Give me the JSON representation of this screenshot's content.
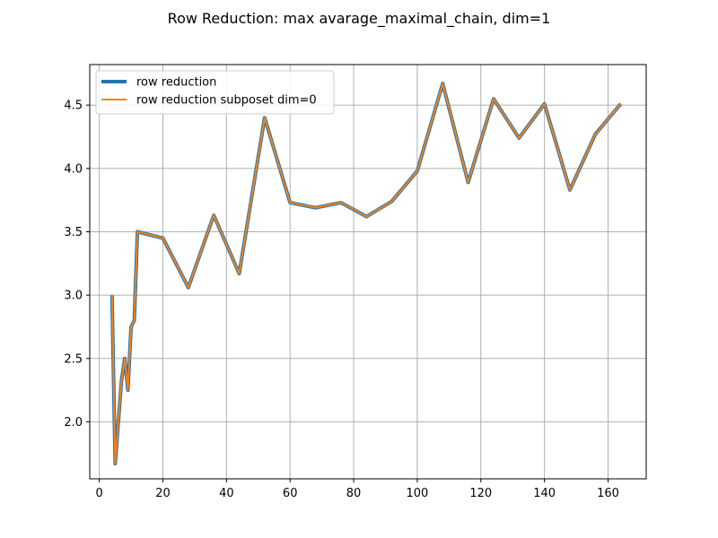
{
  "chart_data": {
    "type": "line",
    "title": "Row Reduction: max avarage_maximal_chain, dim=1",
    "xlabel": "",
    "ylabel": "",
    "xlim": [
      -3.0,
      172.0
    ],
    "ylim": [
      1.55,
      4.82
    ],
    "xticks": [
      0,
      20,
      40,
      60,
      80,
      100,
      120,
      140,
      160
    ],
    "yticks": [
      2.0,
      2.5,
      3.0,
      3.5,
      4.0,
      4.5
    ],
    "xtick_labels": [
      "0",
      "20",
      "40",
      "60",
      "80",
      "100",
      "120",
      "140",
      "160"
    ],
    "ytick_labels": [
      "2.0",
      "2.5",
      "3.0",
      "3.5",
      "4.0",
      "4.5"
    ],
    "grid": true,
    "legend_position": "top-left",
    "x": [
      4,
      5,
      7,
      8,
      9,
      10,
      11,
      12,
      20,
      28,
      36,
      44,
      52,
      60,
      68,
      76,
      84,
      92,
      100,
      108,
      116,
      124,
      132,
      140,
      148,
      156,
      164
    ],
    "series": [
      {
        "name": "row reduction",
        "color": "#1f77b4",
        "values": [
          3.0,
          1.67,
          2.33,
          2.5,
          2.25,
          2.75,
          2.8,
          3.5,
          3.45,
          3.06,
          3.63,
          3.17,
          4.4,
          3.73,
          3.69,
          3.73,
          3.62,
          3.74,
          3.98,
          4.67,
          3.89,
          4.55,
          4.24,
          4.51,
          3.83,
          4.27,
          4.51
        ]
      },
      {
        "name": "row reduction subposet dim=0",
        "color": "#ff7f0e",
        "values": [
          3.0,
          1.67,
          2.33,
          2.5,
          2.25,
          2.75,
          2.8,
          3.5,
          3.45,
          3.06,
          3.63,
          3.17,
          4.4,
          3.73,
          3.69,
          3.73,
          3.62,
          3.74,
          3.98,
          4.67,
          3.89,
          4.55,
          4.24,
          4.51,
          3.83,
          4.27,
          4.51
        ]
      }
    ]
  }
}
